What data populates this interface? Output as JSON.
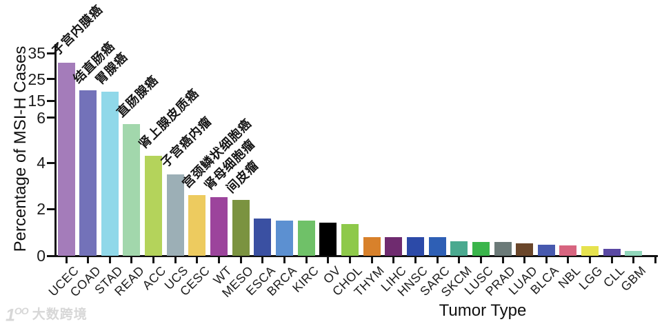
{
  "watermark": {
    "logo": "1",
    "logo_sup": "OO",
    "text": "大数跨境"
  },
  "chart_data": {
    "type": "bar",
    "title": "",
    "xlabel": "Tumor Type",
    "ylabel": "Percentage of MSI-H Cases",
    "y_axis": {
      "ticks": [
        0,
        2,
        4,
        6,
        15,
        25,
        35
      ],
      "broken_axis": true,
      "note": "axis compressed above 6"
    },
    "grid": false,
    "legend": "none",
    "bars": [
      {
        "abbr": "UCEC",
        "value": 31.4,
        "color": "#a47cba",
        "annotation_zh": "子宫内膜癌"
      },
      {
        "abbr": "COAD",
        "value": 19.7,
        "color": "#7372b9",
        "annotation_zh": "结直肠癌"
      },
      {
        "abbr": "STAD",
        "value": 19.1,
        "color": "#90d8e9",
        "annotation_zh": "胃腺癌"
      },
      {
        "abbr": "READ",
        "value": 5.7,
        "color": "#a2d7ac",
        "annotation_zh": "直肠腺癌"
      },
      {
        "abbr": "ACC",
        "value": 4.3,
        "color": "#b4d35b",
        "annotation_zh": "肾上腺皮质癌"
      },
      {
        "abbr": "UCS",
        "value": 3.5,
        "color": "#9cafb6",
        "annotation_zh": "子宫癌内瘤"
      },
      {
        "abbr": "CESC",
        "value": 2.6,
        "color": "#edcb5f",
        "annotation_zh": "宫颈鳞状细胞癌"
      },
      {
        "abbr": "WT",
        "value": 2.5,
        "color": "#9c449c",
        "annotation_zh": "肾母细胞瘤"
      },
      {
        "abbr": "MESO",
        "value": 2.4,
        "color": "#7b9340",
        "annotation_zh": "间皮瘤"
      },
      {
        "abbr": "ESCA",
        "value": 1.6,
        "color": "#3a50a2",
        "annotation_zh": ""
      },
      {
        "abbr": "BRCA",
        "value": 1.5,
        "color": "#5c90d1",
        "annotation_zh": ""
      },
      {
        "abbr": "KIRC",
        "value": 1.5,
        "color": "#6fc168",
        "annotation_zh": ""
      },
      {
        "abbr": "OV",
        "value": 1.4,
        "color": "#000000",
        "annotation_zh": ""
      },
      {
        "abbr": "CHOL",
        "value": 1.35,
        "color": "#8ec94a",
        "annotation_zh": ""
      },
      {
        "abbr": "THYM",
        "value": 0.8,
        "color": "#d8812b",
        "annotation_zh": ""
      },
      {
        "abbr": "LIHC",
        "value": 0.8,
        "color": "#6f2b6f",
        "annotation_zh": ""
      },
      {
        "abbr": "HNSC",
        "value": 0.78,
        "color": "#2c4aa8",
        "annotation_zh": ""
      },
      {
        "abbr": "SARC",
        "value": 0.78,
        "color": "#2e5fb5",
        "annotation_zh": ""
      },
      {
        "abbr": "SKCM",
        "value": 0.62,
        "color": "#4aa98f",
        "annotation_zh": ""
      },
      {
        "abbr": "LUSC",
        "value": 0.58,
        "color": "#3ab54b",
        "annotation_zh": ""
      },
      {
        "abbr": "PRAD",
        "value": 0.58,
        "color": "#6b7a78",
        "annotation_zh": ""
      },
      {
        "abbr": "LUAD",
        "value": 0.52,
        "color": "#6a462a",
        "annotation_zh": ""
      },
      {
        "abbr": "BLCA",
        "value": 0.47,
        "color": "#4759ae",
        "annotation_zh": ""
      },
      {
        "abbr": "NBL",
        "value": 0.44,
        "color": "#d7647f",
        "annotation_zh": ""
      },
      {
        "abbr": "LGG",
        "value": 0.4,
        "color": "#e6e24e",
        "annotation_zh": ""
      },
      {
        "abbr": "CLL",
        "value": 0.28,
        "color": "#5a48a3",
        "annotation_zh": ""
      },
      {
        "abbr": "GBM",
        "value": 0.22,
        "color": "#90d6ba",
        "annotation_zh": ""
      }
    ]
  }
}
